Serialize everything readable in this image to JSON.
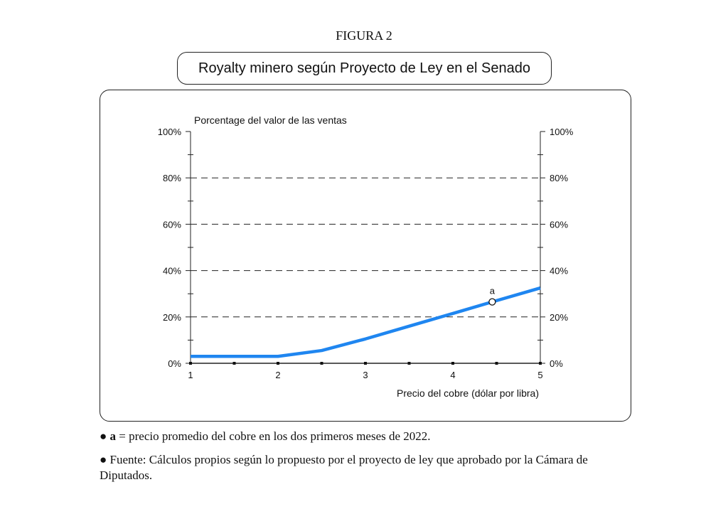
{
  "figure_label": "FIGURA 2",
  "chart_data": {
    "type": "line",
    "title": "Royalty minero según Proyecto de Ley en el Senado",
    "ylabel": "Porcentage del valor de las ventas",
    "xlabel": "Precio del cobre (dólar por libra)",
    "xlim": [
      1,
      5
    ],
    "ylim": [
      0,
      100
    ],
    "x_ticks": [
      "1",
      "2",
      "3",
      "4",
      "5"
    ],
    "y_ticks_left": [
      "0%",
      "20%",
      "40%",
      "60%",
      "80%",
      "100%"
    ],
    "y_ticks_right": [
      "0%",
      "20%",
      "40%",
      "60%",
      "80%",
      "100%"
    ],
    "grid": "dashed horizontal at 20%, 40%, 60%, 80%",
    "line_color": "#1f86f0",
    "series": [
      {
        "x": [
          1,
          2,
          2.5,
          3,
          3.5,
          4,
          4.45,
          5
        ],
        "y": [
          3,
          3,
          5.5,
          10.5,
          16,
          21.5,
          26.5,
          32.5
        ]
      }
    ],
    "annotations": [
      {
        "label": "a",
        "x": 4.45,
        "y": 26.5
      }
    ]
  },
  "notes": {
    "bullet": "●",
    "a_key": "a",
    "a_text": " = precio promedio del cobre en los dos primeros meses de 2022.",
    "source_text": " Fuente: Cálculos propios según lo propuesto por el proyecto de ley que aprobado por la Cámara de Diputados."
  }
}
